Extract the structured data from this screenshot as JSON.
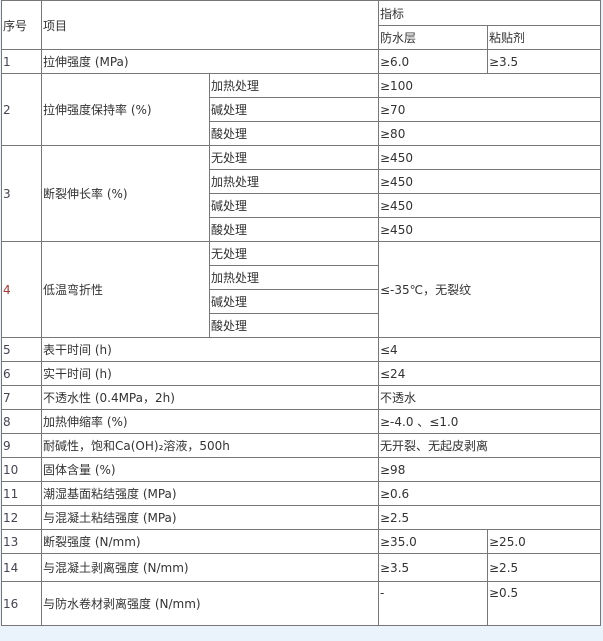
{
  "header": {
    "no": "序号",
    "item": "项目",
    "index": "指标",
    "layer": "防水层",
    "adhesive": "粘贴剂"
  },
  "rows": [
    {
      "no": "1",
      "item": "拉伸强度 (MPa)",
      "layer": "≥6.0",
      "adhesive": "≥3.5"
    },
    {
      "no": "2",
      "item": "拉伸强度保持率 (%)",
      "subs": [
        {
          "cond": "加热处理",
          "value": "≥100"
        },
        {
          "cond": "碱处理",
          "value": "≥70"
        },
        {
          "cond": "酸处理",
          "value": "≥80"
        }
      ]
    },
    {
      "no": "3",
      "item": "断裂伸长率 (%)",
      "subs": [
        {
          "cond": "无处理",
          "value": "≥450"
        },
        {
          "cond": "加热处理",
          "value": "≥450"
        },
        {
          "cond": "碱处理",
          "value": "≥450"
        },
        {
          "cond": "酸处理",
          "value": "≥450"
        }
      ]
    },
    {
      "no": "4",
      "item": "低温弯折性",
      "value": "≤-35℃，无裂纹",
      "subs": [
        {
          "cond": "无处理"
        },
        {
          "cond": "加热处理"
        },
        {
          "cond": "碱处理"
        },
        {
          "cond": "酸处理"
        }
      ]
    },
    {
      "no": "5",
      "item": "表干时间 (h)",
      "value": "≤4"
    },
    {
      "no": "6",
      "item": "实干时间 (h)",
      "value": "≤24"
    },
    {
      "no": "7",
      "item": "不透水性 (0.4MPa，2h)",
      "value": "不透水"
    },
    {
      "no": "8",
      "item": "加热伸缩率 (%)",
      "value": "≥-4.0 、≤1.0"
    },
    {
      "no": "9",
      "item": "耐碱性，饱和Ca(OH)₂溶液，500h",
      "value": "无开裂、无起皮剥离"
    },
    {
      "no": "10",
      "item": "固体含量 (%)",
      "value": "≥98"
    },
    {
      "no": "11",
      "item": "潮湿基面粘结强度 (MPa)",
      "value": "≥0.6"
    },
    {
      "no": "12",
      "item": "与混凝土粘结强度 (MPa)",
      "value": "≥2.5"
    },
    {
      "no": "13",
      "item": "断裂强度 (N/mm)",
      "layer": "≥35.0",
      "adhesive": "≥25.0"
    },
    {
      "no": "14",
      "item": "与混凝土剥离强度 (N/mm)",
      "layer": "≥3.5",
      "adhesive": "≥2.5"
    },
    {
      "no": "16",
      "item": "与防水卷材剥离强度 (N/mm)",
      "layer": "-",
      "adhesive": "≥0.5"
    }
  ]
}
